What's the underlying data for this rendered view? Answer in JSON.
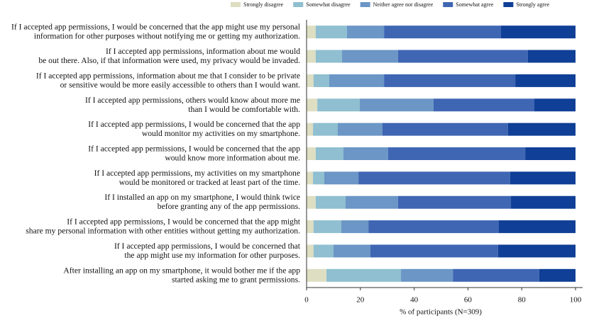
{
  "chart_data": {
    "type": "stacked-barh",
    "xlabel": "% of participants (N=309)",
    "categories": [
      [
        "If I accepted app permissions, I would be concerned that the app might use my personal",
        "information for other purposes without notifying me or getting my authorization."
      ],
      [
        "If I accepted app permissions, information about me would",
        "be out there. Also, if that information were used, my privacy would be invaded."
      ],
      [
        "If I accepted app permissions, information about me that I consider to be private",
        "or sensitive would be more easily accessible to others than I would want."
      ],
      [
        "If I accepted app permissions, others would know about more me",
        "than I would be comfortable with."
      ],
      [
        "If I accepted app permissions, I would be concerned that the app",
        "would monitor my activities on my smartphone."
      ],
      [
        "If I accepted app permissions, I would be concerned that the app",
        "would know more information about me."
      ],
      [
        "If I accepted app permissions, my activities on my smartphone",
        "would be monitored or tracked at least part of the time."
      ],
      [
        "If I installed an app on my smartphone, I would think twice",
        "before granting any of the app permissions."
      ],
      [
        "If I accepted app permissions, I would be concerned that the app might",
        "share my personal information with other entities without getting my authorization."
      ],
      [
        "If I accepted app permissions, I would be concerned that",
        "the app might use my information for other purposes."
      ],
      [
        "After installing an app on my smartphone, it would bother me if the app",
        "started asking me to grant permissions."
      ]
    ],
    "series": [
      {
        "name": "Strongly disagree",
        "color": "#dedec3",
        "values": [
          3.4,
          3.4,
          2.6,
          4.0,
          2.4,
          3.4,
          2.4,
          3.4,
          2.6,
          2.6,
          7.4
        ]
      },
      {
        "name": "Somewhat disagree",
        "color": "#8fbfd0",
        "values": [
          11.6,
          9.8,
          5.8,
          15.8,
          9.2,
          10.3,
          4.2,
          11.1,
          10.3,
          7.4,
          27.7
        ]
      },
      {
        "name": "Neither agree nor disagree",
        "color": "#6b96c6",
        "values": [
          13.8,
          20.8,
          20.4,
          27.4,
          16.6,
          16.6,
          12.7,
          19.5,
          10.1,
          13.7,
          19.3
        ]
      },
      {
        "name": "Somewhat agree",
        "color": "#3f66b3",
        "values": [
          43.5,
          48.3,
          48.8,
          37.5,
          46.7,
          51.0,
          56.4,
          42.0,
          48.5,
          47.5,
          32.1
        ]
      },
      {
        "name": "Strongly agree",
        "color": "#0f3f96",
        "values": [
          27.7,
          17.7,
          22.4,
          15.3,
          25.1,
          18.7,
          24.3,
          24.0,
          28.5,
          28.8,
          13.5
        ]
      }
    ],
    "xlim": [
      0,
      100
    ],
    "xticks": [
      0,
      20,
      40,
      60,
      80,
      100
    ]
  }
}
